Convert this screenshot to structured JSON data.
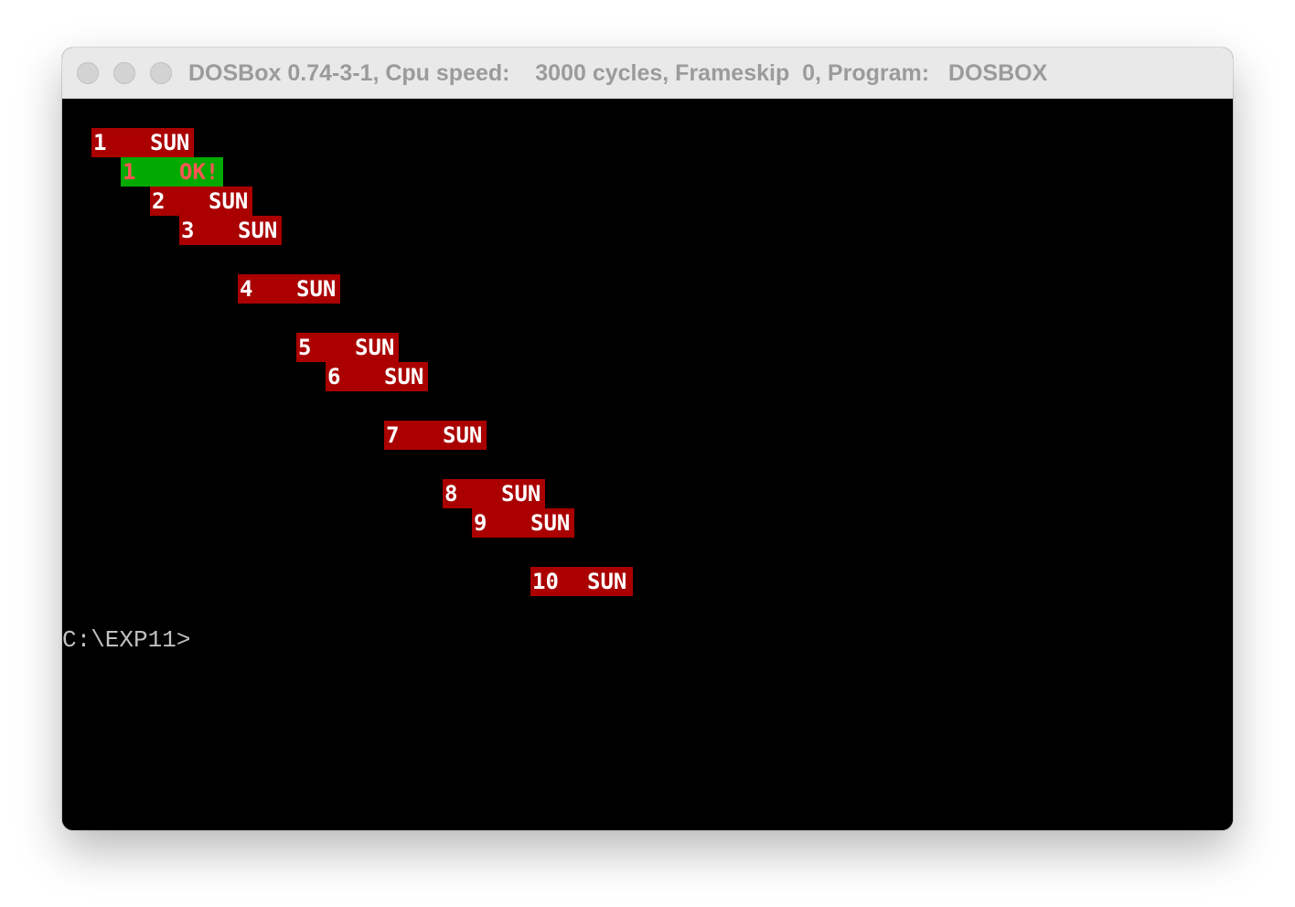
{
  "window": {
    "title": "DOSBox 0.74-3-1, Cpu speed:    3000 cycles, Frameskip  0, Program:   DOSBOX"
  },
  "colors": {
    "red_block": "#aa0000",
    "green_block": "#00aa00",
    "ok_text": "#ff5555",
    "prompt_text": "#c0c0c0"
  },
  "screen": {
    "rows": [
      {
        "num": "1",
        "label": "SUN"
      },
      {
        "num": "1",
        "label": "OK!"
      },
      {
        "num": "2",
        "label": "SUN"
      },
      {
        "num": "3",
        "label": "SUN"
      },
      {
        "num": "4",
        "label": "SUN"
      },
      {
        "num": "5",
        "label": "SUN"
      },
      {
        "num": "6",
        "label": "SUN"
      },
      {
        "num": "7",
        "label": "SUN"
      },
      {
        "num": "8",
        "label": "SUN"
      },
      {
        "num": "9",
        "label": "SUN"
      },
      {
        "num": "10",
        "label": "SUN"
      }
    ],
    "prompt": "C:\\EXP11>"
  }
}
